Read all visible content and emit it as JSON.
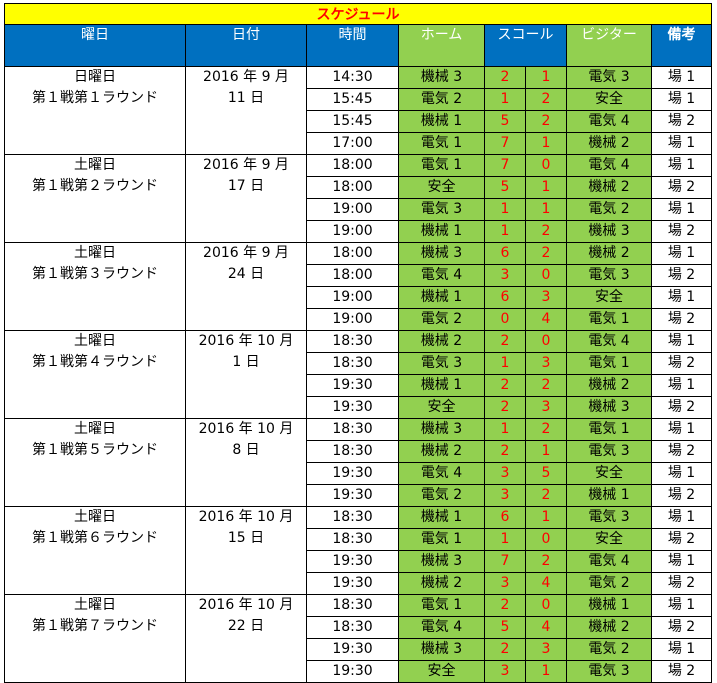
{
  "title": "スケジュール",
  "headers": {
    "weekday": "曜日",
    "date": "日付",
    "time": "時間",
    "home": "ホーム",
    "score": "スコール",
    "visitor": "ビジター",
    "remarks": "備考"
  },
  "rounds": [
    {
      "day": "日曜日",
      "round": "第１戦第１ラウンド",
      "date_line1": "2016 年 9 月",
      "date_line2": "11 日",
      "matches": [
        {
          "time": "14:30",
          "home": "機械 3",
          "hs": "2",
          "vs": "1",
          "visitor": "電気 3",
          "note": "場 1"
        },
        {
          "time": "15:45",
          "home": "電気 2",
          "hs": "1",
          "vs": "2",
          "visitor": "安全",
          "note": "場 1"
        },
        {
          "time": "15:45",
          "home": "機械 1",
          "hs": "5",
          "vs": "2",
          "visitor": "電気 4",
          "note": "場 2"
        },
        {
          "time": "17:00",
          "home": "電気 1",
          "hs": "7",
          "vs": "1",
          "visitor": "機械 2",
          "note": "場 1"
        }
      ]
    },
    {
      "day": "土曜日",
      "round": "第１戦第２ラウンド",
      "date_line1": "2016 年 9 月",
      "date_line2": "17 日",
      "matches": [
        {
          "time": "18:00",
          "home": "電気 1",
          "hs": "7",
          "vs": "0",
          "visitor": "電気 4",
          "note": "場 1"
        },
        {
          "time": "18:00",
          "home": "安全",
          "hs": "5",
          "vs": "1",
          "visitor": "機械 2",
          "note": "場 2"
        },
        {
          "time": "19:00",
          "home": "電気 3",
          "hs": "1",
          "vs": "1",
          "visitor": "電気 2",
          "note": "場 1"
        },
        {
          "time": "19:00",
          "home": "機械 1",
          "hs": "1",
          "vs": "2",
          "visitor": "機械 3",
          "note": "場 2"
        }
      ]
    },
    {
      "day": "土曜日",
      "round": "第１戦第３ラウンド",
      "date_line1": "2016 年 9 月",
      "date_line2": "24 日",
      "matches": [
        {
          "time": "18:00",
          "home": "機械 3",
          "hs": "6",
          "vs": "2",
          "visitor": "機械 2",
          "note": "場 1"
        },
        {
          "time": "18:00",
          "home": "電気 4",
          "hs": "3",
          "vs": "0",
          "visitor": "電気 3",
          "note": "場 2"
        },
        {
          "time": "19:00",
          "home": "機械 1",
          "hs": "6",
          "vs": "3",
          "visitor": "安全",
          "note": "場 1"
        },
        {
          "time": "19:00",
          "home": "電気 2",
          "hs": "0",
          "vs": "4",
          "visitor": "電気 1",
          "note": "場 2"
        }
      ]
    },
    {
      "day": "土曜日",
      "round": "第１戦第４ラウンド",
      "date_line1": "2016 年 10 月",
      "date_line2": "1 日",
      "matches": [
        {
          "time": "18:30",
          "home": "機械 2",
          "hs": "2",
          "vs": "0",
          "visitor": "電気 4",
          "note": "場 1"
        },
        {
          "time": "18:30",
          "home": "電気 3",
          "hs": "1",
          "vs": "3",
          "visitor": "電気 1",
          "note": "場 2"
        },
        {
          "time": "19:30",
          "home": "機械 1",
          "hs": "2",
          "vs": "2",
          "visitor": "機械 2",
          "note": "場 1"
        },
        {
          "time": "19:30",
          "home": "安全",
          "hs": "2",
          "vs": "3",
          "visitor": "機械 3",
          "note": "場 2"
        }
      ]
    },
    {
      "day": "土曜日",
      "round": "第１戦第５ラウンド",
      "date_line1": "2016 年 10 月",
      "date_line2": "8 日",
      "matches": [
        {
          "time": "18:30",
          "home": "機械 3",
          "hs": "1",
          "vs": "2",
          "visitor": "電気 1",
          "note": "場 1"
        },
        {
          "time": "18:30",
          "home": "機械 2",
          "hs": "2",
          "vs": "1",
          "visitor": "電気 3",
          "note": "場 2"
        },
        {
          "time": "19:30",
          "home": "電気 4",
          "hs": "3",
          "vs": "5",
          "visitor": "安全",
          "note": "場 1"
        },
        {
          "time": "19:30",
          "home": "電気 2",
          "hs": "3",
          "vs": "2",
          "visitor": "機械 1",
          "note": "場 2"
        }
      ]
    },
    {
      "day": "土曜日",
      "round": "第１戦第６ラウンド",
      "date_line1": "2016 年 10 月",
      "date_line2": "15 日",
      "matches": [
        {
          "time": "18:30",
          "home": "機械 1",
          "hs": "6",
          "vs": "1",
          "visitor": "電気 3",
          "note": "場 1"
        },
        {
          "time": "18:30",
          "home": "電気 1",
          "hs": "1",
          "vs": "0",
          "visitor": "安全",
          "note": "場 2"
        },
        {
          "time": "19:30",
          "home": "機械 3",
          "hs": "7",
          "vs": "2",
          "visitor": "電気 4",
          "note": "場 1"
        },
        {
          "time": "19:30",
          "home": "機械 2",
          "hs": "3",
          "vs": "4",
          "visitor": "電気 2",
          "note": "場 2"
        }
      ]
    },
    {
      "day": "土曜日",
      "round": "第１戦第７ラウンド",
      "date_line1": "2016 年 10 月",
      "date_line2": "22 日",
      "matches": [
        {
          "time": "18:30",
          "home": "電気 1",
          "hs": "2",
          "vs": "0",
          "visitor": "機械 1",
          "note": "場 1"
        },
        {
          "time": "18:30",
          "home": "電気 4",
          "hs": "5",
          "vs": "4",
          "visitor": "機械 2",
          "note": "場 2"
        },
        {
          "time": "19:30",
          "home": "機械 3",
          "hs": "2",
          "vs": "3",
          "visitor": "電気 2",
          "note": "場 1"
        },
        {
          "time": "19:30",
          "home": "安全",
          "hs": "3",
          "vs": "1",
          "visitor": "電気 3",
          "note": "場 2"
        }
      ]
    }
  ]
}
